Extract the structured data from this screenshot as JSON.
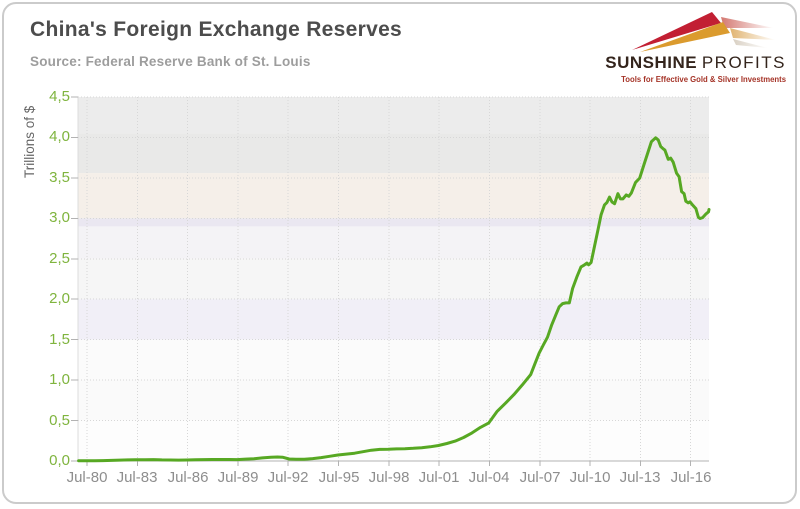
{
  "header": {
    "title": "China's Foreign Exchange Reserves",
    "source": "Source: Federal Reserve Bank of St. Louis"
  },
  "logo": {
    "brand_bold": "SUNSHINE",
    "brand_light": "PROFITS",
    "tagline": "Tools for Effective Gold & Silver Investments",
    "colors": {
      "brand_text": "#33241c",
      "tagline": "#a53327",
      "swoosh_red": "#c21f33",
      "swoosh_gold": "#db9b2e",
      "swoosh_pale": "#e9cfa0"
    }
  },
  "chart_data": {
    "type": "line",
    "title": "China's Foreign Exchange Reserves",
    "subtitle": "Source: Federal Reserve Bank of St. Louis",
    "ylabel": "Trillions of $",
    "xlabel": "",
    "ylim": [
      0,
      4.5
    ],
    "y_tick_step": 0.5,
    "y_tick_labels": [
      "0,0",
      "0,5",
      "1,0",
      "1,5",
      "2,0",
      "2,5",
      "3,0",
      "3,5",
      "4,0",
      "4,5"
    ],
    "x_tick_labels": [
      "Jul-80",
      "Jul-83",
      "Jul-86",
      "Jul-89",
      "Jul-92",
      "Jul-95",
      "Jul-98",
      "Jul-01",
      "Jul-04",
      "Jul-07",
      "Jul-10",
      "Jul-13",
      "Jul-16"
    ],
    "x_tick_years": [
      1980.54,
      1983.54,
      1986.54,
      1989.54,
      1992.54,
      1995.54,
      1998.54,
      2001.54,
      2004.54,
      2007.54,
      2010.54,
      2013.54,
      2016.54
    ],
    "grid": "dotted",
    "legend": "none",
    "colors": {
      "line": "#57a823",
      "y_tick_label": "#7fb43e",
      "x_tick_label": "#8e8e8e",
      "grid": "#d7d7d7",
      "axis": "#b3b3b3",
      "plot_left_edge": "#dcdcdc"
    },
    "plot_bands": [
      {
        "from": 4.05,
        "to": 4.5,
        "color": "#ececec"
      },
      {
        "from": 3.56,
        "to": 4.05,
        "color": "#e9e9e8"
      },
      {
        "from": 3.0,
        "to": 3.56,
        "color": "#f5efe9"
      },
      {
        "from": 2.9,
        "to": 3.0,
        "color": "#eae7f1"
      },
      {
        "from": 2.5,
        "to": 2.9,
        "color": "#f4f3f6"
      },
      {
        "from": 2.0,
        "to": 2.5,
        "color": "#f6f6f6"
      },
      {
        "from": 1.5,
        "to": 2.0,
        "color": "#f1eff7"
      },
      {
        "from": 1.0,
        "to": 1.5,
        "color": "#fbfbfb"
      },
      {
        "from": 0.5,
        "to": 1.0,
        "color": "#fafafa"
      },
      {
        "from": 0.0,
        "to": 0.5,
        "color": "#fdfdfd"
      }
    ],
    "series": [
      {
        "name": "China foreign exchange reserves (trillions of $)",
        "points": [
          [
            1980.04,
            0.002
          ],
          [
            1980.54,
            0.003
          ],
          [
            1981.0,
            0.004
          ],
          [
            1981.5,
            0.005
          ],
          [
            1982.0,
            0.008
          ],
          [
            1982.5,
            0.011
          ],
          [
            1983.0,
            0.014
          ],
          [
            1983.4,
            0.016
          ],
          [
            1984.0,
            0.016
          ],
          [
            1984.5,
            0.017
          ],
          [
            1985.0,
            0.014
          ],
          [
            1985.5,
            0.012
          ],
          [
            1986.0,
            0.011
          ],
          [
            1986.5,
            0.012
          ],
          [
            1987.0,
            0.015
          ],
          [
            1987.5,
            0.017
          ],
          [
            1988.0,
            0.018
          ],
          [
            1988.5,
            0.019
          ],
          [
            1989.0,
            0.018
          ],
          [
            1989.5,
            0.017
          ],
          [
            1990.0,
            0.023
          ],
          [
            1990.5,
            0.029
          ],
          [
            1991.0,
            0.038
          ],
          [
            1991.5,
            0.046
          ],
          [
            1991.9,
            0.05
          ],
          [
            1992.2,
            0.047
          ],
          [
            1992.6,
            0.025
          ],
          [
            1993.0,
            0.021
          ],
          [
            1993.5,
            0.022
          ],
          [
            1994.0,
            0.03
          ],
          [
            1994.5,
            0.042
          ],
          [
            1995.0,
            0.058
          ],
          [
            1995.5,
            0.074
          ],
          [
            1996.0,
            0.085
          ],
          [
            1996.5,
            0.097
          ],
          [
            1997.0,
            0.115
          ],
          [
            1997.5,
            0.133
          ],
          [
            1998.0,
            0.143
          ],
          [
            1998.5,
            0.145
          ],
          [
            1999.0,
            0.149
          ],
          [
            1999.5,
            0.152
          ],
          [
            2000.0,
            0.157
          ],
          [
            2000.5,
            0.164
          ],
          [
            2001.0,
            0.176
          ],
          [
            2001.5,
            0.192
          ],
          [
            2002.0,
            0.216
          ],
          [
            2002.5,
            0.246
          ],
          [
            2003.0,
            0.291
          ],
          [
            2003.5,
            0.348
          ],
          [
            2004.0,
            0.416
          ],
          [
            2004.5,
            0.471
          ],
          [
            2005.0,
            0.614
          ],
          [
            2005.5,
            0.716
          ],
          [
            2006.0,
            0.821
          ],
          [
            2006.5,
            0.941
          ],
          [
            2007.0,
            1.068
          ],
          [
            2007.25,
            1.202
          ],
          [
            2007.5,
            1.333
          ],
          [
            2007.75,
            1.434
          ],
          [
            2008.0,
            1.53
          ],
          [
            2008.25,
            1.682
          ],
          [
            2008.5,
            1.809
          ],
          [
            2008.7,
            1.906
          ],
          [
            2008.9,
            1.946
          ],
          [
            2009.1,
            1.954
          ],
          [
            2009.3,
            1.954
          ],
          [
            2009.5,
            2.132
          ],
          [
            2009.75,
            2.273
          ],
          [
            2010.0,
            2.399
          ],
          [
            2010.2,
            2.424
          ],
          [
            2010.35,
            2.447
          ],
          [
            2010.45,
            2.425
          ],
          [
            2010.6,
            2.454
          ],
          [
            2010.8,
            2.648
          ],
          [
            2011.0,
            2.847
          ],
          [
            2011.2,
            3.045
          ],
          [
            2011.4,
            3.166
          ],
          [
            2011.55,
            3.197
          ],
          [
            2011.7,
            3.263
          ],
          [
            2011.85,
            3.202
          ],
          [
            2012.0,
            3.181
          ],
          [
            2012.2,
            3.305
          ],
          [
            2012.35,
            3.24
          ],
          [
            2012.5,
            3.24
          ],
          [
            2012.7,
            3.29
          ],
          [
            2012.85,
            3.273
          ],
          [
            2013.0,
            3.312
          ],
          [
            2013.25,
            3.443
          ],
          [
            2013.5,
            3.497
          ],
          [
            2013.75,
            3.662
          ],
          [
            2014.0,
            3.821
          ],
          [
            2014.2,
            3.948
          ],
          [
            2014.45,
            3.995
          ],
          [
            2014.6,
            3.97
          ],
          [
            2014.75,
            3.888
          ],
          [
            2014.9,
            3.859
          ],
          [
            2015.0,
            3.843
          ],
          [
            2015.2,
            3.73
          ],
          [
            2015.35,
            3.745
          ],
          [
            2015.5,
            3.694
          ],
          [
            2015.7,
            3.557
          ],
          [
            2015.85,
            3.514
          ],
          [
            2016.0,
            3.33
          ],
          [
            2016.15,
            3.305
          ],
          [
            2016.25,
            3.212
          ],
          [
            2016.4,
            3.192
          ],
          [
            2016.5,
            3.205
          ],
          [
            2016.65,
            3.166
          ],
          [
            2016.85,
            3.12
          ],
          [
            2017.0,
            3.011
          ],
          [
            2017.1,
            2.998
          ],
          [
            2017.25,
            3.009
          ],
          [
            2017.45,
            3.054
          ],
          [
            2017.6,
            3.081
          ],
          [
            2017.75,
            3.109
          ]
        ]
      }
    ]
  }
}
